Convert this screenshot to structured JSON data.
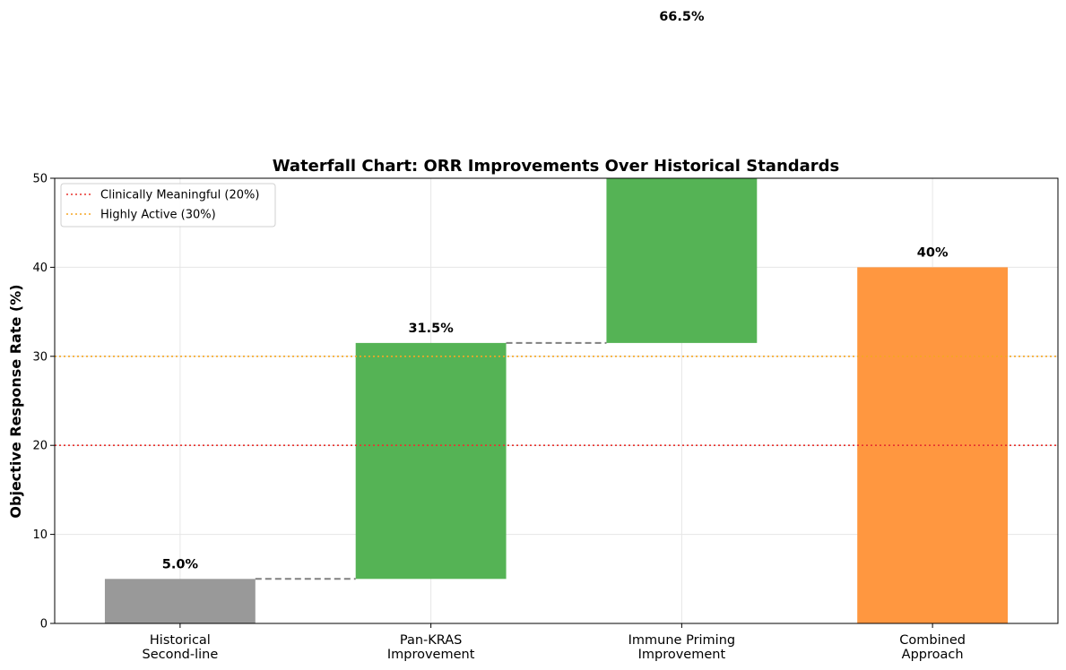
{
  "chart_data": {
    "type": "bar",
    "subtype": "waterfall",
    "title": "Waterfall Chart: ORR Improvements Over Historical Standards",
    "xlabel": "",
    "ylabel": "Objective Response Rate (%)",
    "ylim": [
      0,
      50
    ],
    "yticks": [
      "0",
      "10",
      "20",
      "30",
      "40",
      "50"
    ],
    "grid": true,
    "legend_position": "upper-left",
    "categories": [
      [
        "Historical",
        "Second-line"
      ],
      [
        "Pan-KRAS",
        "Improvement"
      ],
      [
        "Immune Priming",
        "Improvement"
      ],
      [
        "Combined",
        "Approach"
      ]
    ],
    "bars": [
      {
        "bottom": 0,
        "top": 5.0,
        "color": "#999999",
        "label": "5.0%"
      },
      {
        "bottom": 5.0,
        "top": 31.5,
        "color": "#55b355",
        "label": "31.5%"
      },
      {
        "bottom": 31.5,
        "top": 66.5,
        "color": "#55b355",
        "label": "66.5%"
      },
      {
        "bottom": 0,
        "top": 40,
        "color": "#ff9740",
        "label": "40%"
      }
    ],
    "connectors": [
      {
        "from": 0,
        "to": 1,
        "y": 5.0
      },
      {
        "from": 1,
        "to": 2,
        "y": 31.5
      }
    ],
    "reference_lines": [
      {
        "y": 20,
        "color": "#e8332f",
        "name": "Clinically Meaningful (20%)"
      },
      {
        "y": 30,
        "color": "#f5a623",
        "name": "Highly Active (30%)"
      }
    ]
  }
}
